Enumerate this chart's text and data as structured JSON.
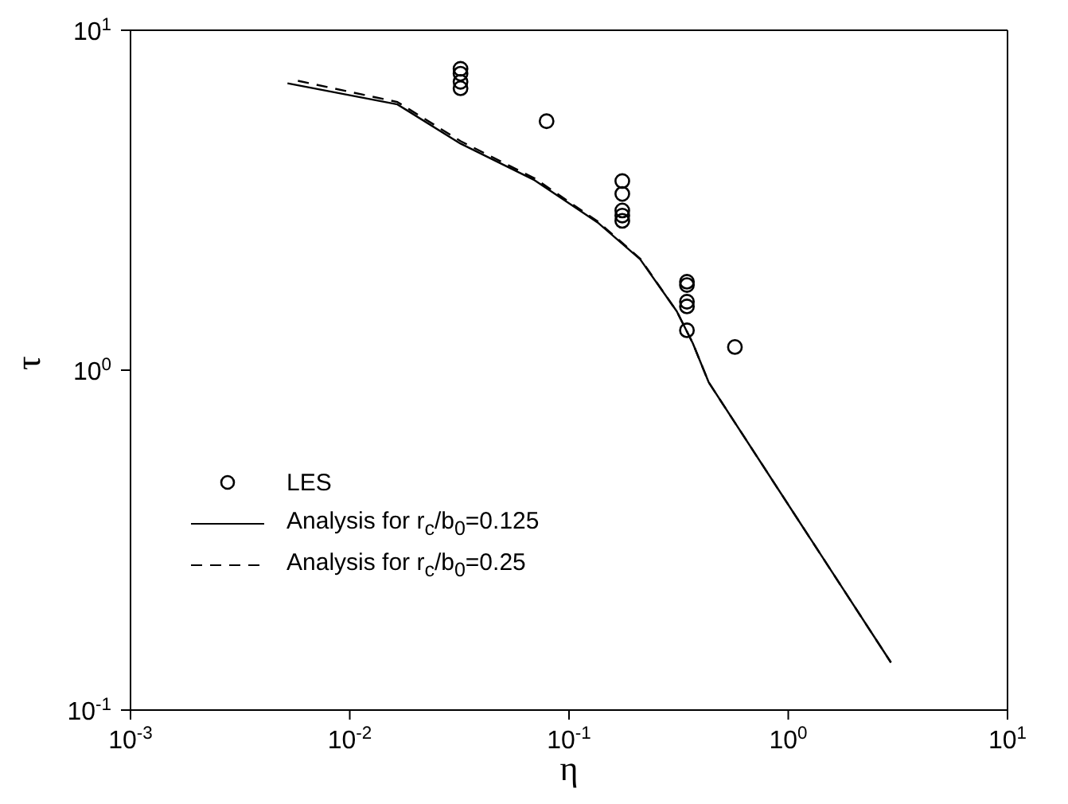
{
  "chart_data": {
    "type": "line",
    "xlabel": "η",
    "ylabel": "τ",
    "log": "xy",
    "xlim": [
      0.001,
      10
    ],
    "ylim": [
      0.1,
      10
    ],
    "xticks": [
      {
        "value": 0.001,
        "label": "10$^{-3}$"
      },
      {
        "value": 0.01,
        "label": "10$^{-2}$"
      },
      {
        "value": 0.1,
        "label": "10$^{-1}$"
      },
      {
        "value": 1,
        "label": "10$^{0}$"
      },
      {
        "value": 10,
        "label": "10$^{1}$"
      }
    ],
    "yticks": [
      {
        "value": 0.1,
        "label": "10$^{-1}$"
      },
      {
        "value": 1,
        "label": "10$^{0}$"
      },
      {
        "value": 10,
        "label": "10$^{1}$"
      }
    ],
    "legend": "left",
    "series": [
      {
        "name": "LES",
        "type": "scatter",
        "marker": "circle",
        "color": "#000000",
        "x": [
          0.032,
          0.032,
          0.032,
          0.032,
          0.079,
          0.175,
          0.175,
          0.175,
          0.175,
          0.175,
          0.345,
          0.345,
          0.345,
          0.345,
          0.345,
          0.571
        ],
        "values": [
          7.7,
          7.45,
          7.05,
          6.75,
          5.4,
          3.6,
          3.3,
          2.95,
          2.85,
          2.75,
          1.82,
          1.78,
          1.59,
          1.54,
          1.31,
          1.17
        ]
      },
      {
        "name": "Analysis for r$_{c}$/b$_{0}$=0.125",
        "line_style": "solid",
        "marker": "none",
        "color": "#000000",
        "x": [
          0.0052,
          0.0165,
          0.032,
          0.0697,
          0.135,
          0.211,
          0.31,
          0.367,
          0.434,
          2.94
        ],
        "values": [
          6.98,
          6.05,
          4.64,
          3.62,
          2.72,
          2.12,
          1.49,
          1.2,
          0.92,
          0.138
        ]
      },
      {
        "name": "Analysis for r$_{c}$/b$_{0}$=0.25",
        "line_style": "dashed",
        "marker": "none",
        "color": "#000000",
        "x": [
          0.0058,
          0.0165,
          0.032,
          0.07,
          0.135,
          0.211,
          0.31,
          0.367,
          0.434,
          2.94
        ],
        "values": [
          7.1,
          6.15,
          4.72,
          3.66,
          2.74,
          2.13,
          1.49,
          1.2,
          0.92,
          0.138
        ]
      }
    ]
  }
}
